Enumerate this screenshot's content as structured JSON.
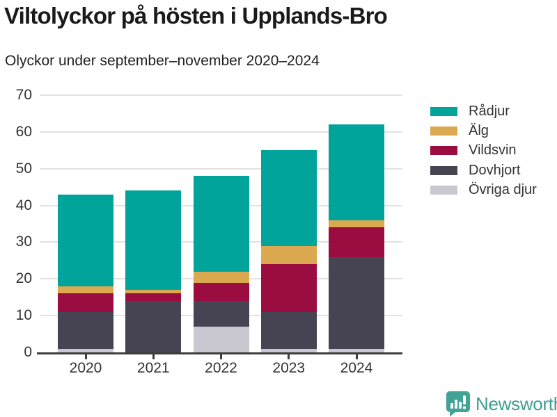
{
  "title": "Viltolyckor på hösten i Upplands-Bro",
  "subtitle": "Olyckor under september–november 2020–2024",
  "footer": {
    "brand": "Newsworthy",
    "icon": "newsworthy-speech-bubble-chart-icon",
    "brand_color": "#3e9d92",
    "icon_color": "#41a296"
  },
  "colors": {
    "axis": "#3d3d3d",
    "grid": "#e2e2e2",
    "tick_text": "#333333",
    "title_text": "#1a1a1a",
    "subtitle_text": "#212121"
  },
  "chart_data": {
    "type": "bar",
    "stacked": true,
    "title": "Viltolyckor på hösten i Upplands-Bro",
    "subtitle": "Olyckor under september–november 2020–2024",
    "categories": [
      "2020",
      "2021",
      "2022",
      "2023",
      "2024"
    ],
    "series": [
      {
        "name": "Rådjur",
        "color": "#00a49b",
        "values": [
          25,
          27,
          26,
          26,
          26
        ]
      },
      {
        "name": "Älg",
        "color": "#dba950",
        "values": [
          2,
          1,
          3,
          5,
          2
        ]
      },
      {
        "name": "Vildsvin",
        "color": "#9b0c40",
        "values": [
          5,
          2,
          5,
          13,
          8
        ]
      },
      {
        "name": "Dovhjort",
        "color": "#464352",
        "values": [
          10,
          14,
          7,
          10,
          25
        ]
      },
      {
        "name": "Övriga djur",
        "color": "#c9c8d1",
        "values": [
          1,
          0,
          7,
          1,
          1
        ]
      }
    ],
    "totals": [
      43,
      44,
      48,
      55,
      62
    ],
    "xlabel": "",
    "ylabel": "",
    "ylim": [
      0,
      70
    ],
    "yticks": [
      0,
      10,
      20,
      30,
      40,
      50,
      60,
      70
    ],
    "grid": true,
    "legend_position": "right"
  }
}
